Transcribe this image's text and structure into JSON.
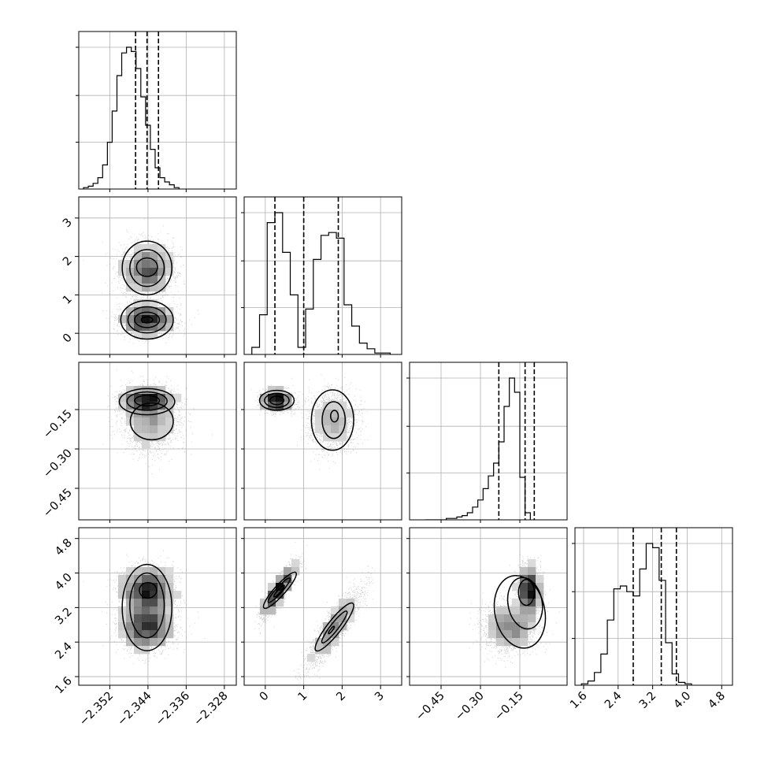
{
  "chart_data": {
    "type": "corner",
    "title": "",
    "parameters": [
      {
        "key": "p0",
        "label": "",
        "range": [
          -2.3585,
          -2.3255
        ],
        "ticks": [
          -2.352,
          -2.344,
          -2.336,
          -2.328
        ],
        "tick_labels": [
          "−2.352",
          "−2.344",
          "−2.336",
          "−2.328"
        ],
        "quantiles": [
          -2.3466,
          -2.3442,
          -2.3418
        ]
      },
      {
        "key": "p1",
        "label": "",
        "range": [
          -0.55,
          3.55
        ],
        "ticks": [
          0,
          1,
          2,
          3
        ],
        "tick_labels": [
          "0",
          "1",
          "2",
          "3"
        ],
        "quantiles": [
          0.25,
          1.0,
          1.9
        ]
      },
      {
        "key": "p2",
        "label": "",
        "range": [
          -0.57,
          0.03
        ],
        "ticks": [
          -0.45,
          -0.3,
          -0.15
        ],
        "tick_labels": [
          "−0.45",
          "−0.30",
          "−0.15"
        ],
        "quantiles": [
          -0.23,
          -0.13,
          -0.095
        ]
      },
      {
        "key": "p3",
        "label": "",
        "range": [
          1.4,
          5.05
        ],
        "ticks": [
          1.6,
          2.4,
          3.2,
          4.0,
          4.8
        ],
        "tick_labels": [
          "1.6",
          "2.4",
          "3.2",
          "4.0",
          "4.8"
        ],
        "quantiles": [
          2.75,
          3.4,
          3.75
        ]
      }
    ],
    "histograms": [
      {
        "param": "p0",
        "bin_edges_start": -2.3575,
        "bin_width": 0.001,
        "counts": [
          1,
          2,
          4,
          8,
          17,
          33,
          55,
          80,
          96,
          100,
          97,
          85,
          65,
          45,
          28,
          15,
          8,
          5,
          3,
          1
        ]
      },
      {
        "param": "p1",
        "bin_edges_start": -0.35,
        "bin_width": 0.2,
        "counts": [
          5,
          28,
          93,
          100,
          72,
          42,
          5,
          32,
          67,
          84,
          86,
          82,
          35,
          20,
          8,
          4,
          1,
          1
        ]
      },
      {
        "param": "p2",
        "bin_edges_start": -0.51,
        "bin_width": 0.02,
        "counts": [
          0,
          0,
          0,
          0,
          1,
          1,
          2,
          3,
          5,
          9,
          14,
          22,
          31,
          40,
          55,
          80,
          100,
          90,
          30,
          5
        ]
      },
      {
        "param": "p3",
        "bin_edges_start": 1.55,
        "bin_width": 0.15,
        "counts": [
          1,
          3,
          9,
          22,
          46,
          68,
          70,
          66,
          63,
          82,
          100,
          97,
          74,
          30,
          8,
          2,
          1
        ]
      }
    ],
    "grid": true,
    "x_axis_labels_rotation_deg": 45,
    "y_axis_labels_rotation_deg": 45
  }
}
